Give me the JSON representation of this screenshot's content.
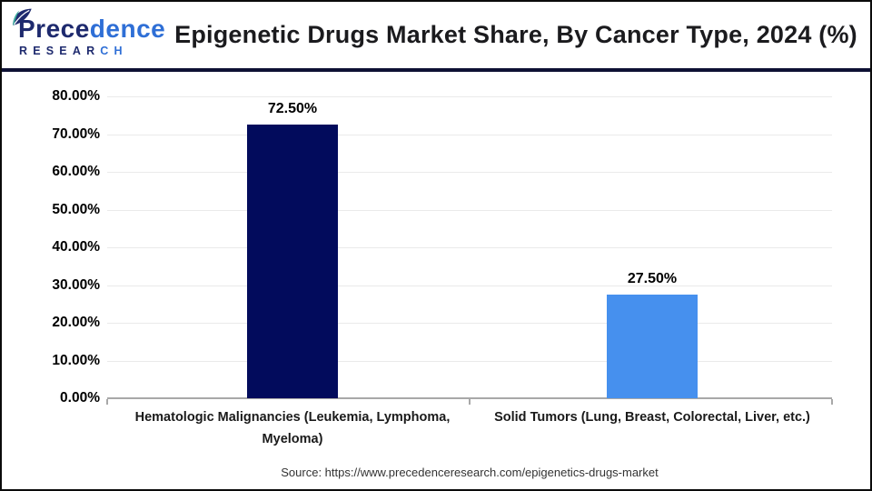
{
  "header": {
    "logo": {
      "name_dark": "Prece",
      "name_light": "dence",
      "sub_dark": "RESEAR",
      "sub_light": "CH"
    },
    "title": "Epigenetic Drugs Market Share, By Cancer Type, 2024 (%)"
  },
  "chart_data": {
    "type": "bar",
    "title": "Epigenetic Drugs Market Share, By Cancer Type, 2024 (%)",
    "categories": [
      "Hematologic Malignancies (Leukemia, Lymphoma, Myeloma)",
      "Solid Tumors (Lung, Breast, Colorectal, Liver, etc.)"
    ],
    "category_lines": [
      [
        "Hematologic Malignancies (Leukemia, Lymphoma,",
        "Myeloma)"
      ],
      [
        "Solid Tumors (Lung, Breast, Colorectal, Liver, etc.)"
      ]
    ],
    "values": [
      72.5,
      27.5
    ],
    "value_labels": [
      "72.50%",
      "27.50%"
    ],
    "bar_colors": [
      "#020b5c",
      "#4690ee"
    ],
    "ylim": [
      0,
      80
    ],
    "yticks": [
      0,
      10,
      20,
      30,
      40,
      50,
      60,
      70,
      80
    ],
    "ytick_labels": [
      "0.00%",
      "10.00%",
      "20.00%",
      "30.00%",
      "40.00%",
      "50.00%",
      "60.00%",
      "70.00%",
      "80.00%"
    ],
    "xlabel": "",
    "ylabel": "",
    "grid": "horizontal",
    "legend": "none"
  },
  "footer": {
    "source": "Source: https://www.precedenceresearch.com/epigenetics-drugs-market"
  },
  "colors": {
    "header_rule": "#0e1134",
    "logo_navy": "#1e2a6e",
    "logo_blue": "#2f6fd6",
    "leaf_teal": "#3fae9e",
    "axis_gray": "#a8a8a8",
    "grid_gray": "#eaeaea"
  }
}
